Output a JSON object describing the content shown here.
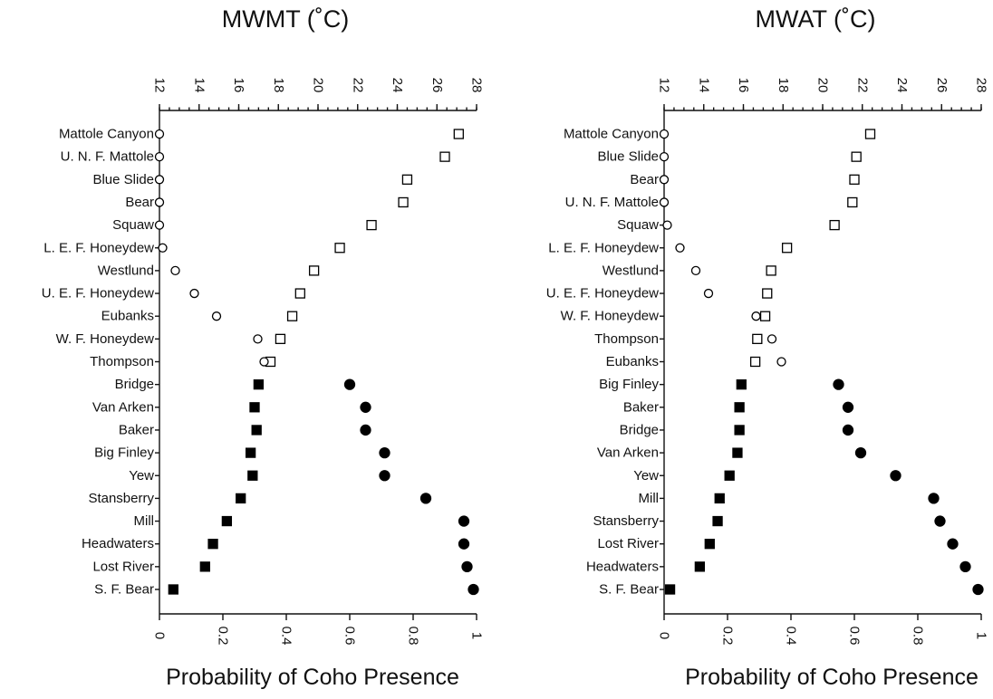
{
  "chart_data": [
    {
      "type": "scatter",
      "title": "MWMT (˚C)",
      "xlabel": "Probability of Coho Presence",
      "top_axis": {
        "min": 12,
        "max": 28,
        "ticks": [
          12,
          14,
          16,
          18,
          20,
          22,
          24,
          26,
          28
        ]
      },
      "bottom_axis": {
        "min": 0,
        "max": 1,
        "ticks": [
          0,
          0.2,
          0.4,
          0.6,
          0.8,
          1
        ],
        "tick_labels": [
          "0",
          "0.2",
          "0.4",
          "0.6",
          "0.8",
          "1"
        ]
      },
      "categories": [
        "Mattole Canyon",
        "U. N. F. Mattole",
        "Blue Slide",
        "Bear",
        "Squaw",
        "L. E. F. Honeydew",
        "Westlund",
        "U. E. F. Honeydew",
        "Eubanks",
        "W. F. Honeydew",
        "Thompson",
        "Bridge",
        "Van Arken",
        "Baker",
        "Big Finley",
        "Yew",
        "Stansberry",
        "Mill",
        "Headwaters",
        "Lost River",
        "S. F. Bear"
      ],
      "temperature": [
        27.1,
        26.4,
        24.5,
        24.3,
        22.7,
        21.1,
        19.8,
        19.1,
        18.7,
        18.1,
        17.6,
        17.0,
        16.8,
        16.9,
        16.6,
        16.7,
        16.1,
        15.4,
        14.7,
        14.3,
        12.7
      ],
      "presence_probability": [
        0.0,
        0.0,
        0.0,
        0.0,
        0.0,
        0.01,
        0.05,
        0.11,
        0.18,
        0.31,
        0.33,
        0.6,
        0.65,
        0.65,
        0.71,
        0.71,
        0.84,
        0.96,
        0.96,
        0.97,
        0.99
      ],
      "coho_present": [
        false,
        false,
        false,
        false,
        false,
        false,
        false,
        false,
        false,
        false,
        false,
        true,
        true,
        true,
        true,
        true,
        true,
        true,
        true,
        true,
        true
      ]
    },
    {
      "type": "scatter",
      "title": "MWAT (˚C)",
      "xlabel": "Probability of Coho Presence",
      "top_axis": {
        "min": 12,
        "max": 28,
        "ticks": [
          12,
          14,
          16,
          18,
          20,
          22,
          24,
          26,
          28
        ]
      },
      "bottom_axis": {
        "min": 0,
        "max": 1,
        "ticks": [
          0,
          0.2,
          0.4,
          0.6,
          0.8,
          1
        ],
        "tick_labels": [
          "0",
          "0.2",
          "0.4",
          "0.6",
          "0.8",
          "1"
        ]
      },
      "categories": [
        "Mattole Canyon",
        "Blue Slide",
        "Bear",
        "U. N. F. Mattole",
        "Squaw",
        "L. E. F. Honeydew",
        "Westlund",
        "U. E. F. Honeydew",
        "W. F. Honeydew",
        "Thompson",
        "Eubanks",
        "Big Finley",
        "Baker",
        "Bridge",
        "Van Arken",
        "Yew",
        "Mill",
        "Stansberry",
        "Lost River",
        "Headwaters",
        "S. F. Bear"
      ],
      "temperature": [
        22.4,
        21.7,
        21.6,
        21.5,
        20.6,
        18.2,
        17.4,
        17.2,
        17.1,
        16.7,
        16.6,
        15.9,
        15.8,
        15.8,
        15.7,
        15.3,
        14.8,
        14.7,
        14.3,
        13.8,
        12.3
      ],
      "presence_probability": [
        0.0,
        0.0,
        0.0,
        0.0,
        0.01,
        0.05,
        0.1,
        0.14,
        0.29,
        0.34,
        0.37,
        0.55,
        0.58,
        0.58,
        0.62,
        0.73,
        0.85,
        0.87,
        0.91,
        0.95,
        0.99
      ],
      "coho_present": [
        false,
        false,
        false,
        false,
        false,
        false,
        false,
        false,
        false,
        false,
        false,
        true,
        true,
        true,
        true,
        true,
        true,
        true,
        true,
        true,
        true
      ]
    }
  ]
}
